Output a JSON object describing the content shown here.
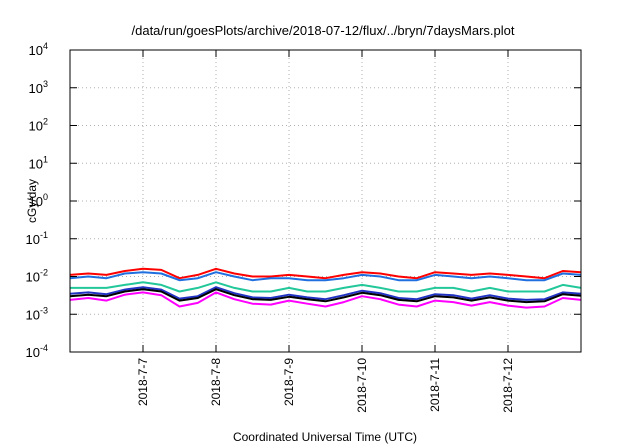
{
  "chart_data": {
    "type": "line",
    "title": "/data/run/goesPlots/archive/2018-07-12/flux/../bryn/7daysMars.plot",
    "xlabel": "Coordinated Universal Time (UTC)",
    "ylabel": "cGy/day",
    "y_scale": "log",
    "ylim": [
      0.0001,
      10000
    ],
    "y_ticks": [
      {
        "base": "10",
        "exp": "-4",
        "value": 0.0001
      },
      {
        "base": "10",
        "exp": "-3",
        "value": 0.001
      },
      {
        "base": "10",
        "exp": "-2",
        "value": 0.01
      },
      {
        "base": "10",
        "exp": "-1",
        "value": 0.1
      },
      {
        "base": "10",
        "exp": "0",
        "value": 1
      },
      {
        "base": "10",
        "exp": "1",
        "value": 10
      },
      {
        "base": "10",
        "exp": "2",
        "value": 100
      },
      {
        "base": "10",
        "exp": "3",
        "value": 1000
      },
      {
        "base": "10",
        "exp": "4",
        "value": 10000
      }
    ],
    "xlim": [
      "2018-07-06 00:00",
      "2018-07-13 00:00"
    ],
    "x_ticks": [
      "2018-7-7",
      "2018-7-8",
      "2018-7-9",
      "2018-7-10",
      "2018-7-11",
      "2018-7-12"
    ],
    "grid": true,
    "legend": "none",
    "x": [
      "2018-07-06 00:00",
      "2018-07-06 06:00",
      "2018-07-06 12:00",
      "2018-07-06 18:00",
      "2018-07-07 00:00",
      "2018-07-07 06:00",
      "2018-07-07 12:00",
      "2018-07-07 18:00",
      "2018-07-08 00:00",
      "2018-07-08 06:00",
      "2018-07-08 12:00",
      "2018-07-08 18:00",
      "2018-07-09 00:00",
      "2018-07-09 06:00",
      "2018-07-09 12:00",
      "2018-07-09 18:00",
      "2018-07-10 00:00",
      "2018-07-10 06:00",
      "2018-07-10 12:00",
      "2018-07-10 18:00",
      "2018-07-11 00:00",
      "2018-07-11 06:00",
      "2018-07-11 12:00",
      "2018-07-11 18:00",
      "2018-07-12 00:00",
      "2018-07-12 06:00",
      "2018-07-12 12:00",
      "2018-07-12 18:00",
      "2018-07-13 00:00"
    ],
    "series": [
      {
        "color": "#ff0000",
        "values": [
          0.011,
          0.012,
          0.011,
          0.014,
          0.016,
          0.015,
          0.009,
          0.011,
          0.016,
          0.012,
          0.01,
          0.01,
          0.011,
          0.01,
          0.009,
          0.011,
          0.013,
          0.012,
          0.01,
          0.009,
          0.013,
          0.012,
          0.011,
          0.012,
          0.011,
          0.01,
          0.009,
          0.014,
          0.013
        ]
      },
      {
        "color": "#1f6fe0",
        "values": [
          0.009,
          0.01,
          0.009,
          0.012,
          0.013,
          0.012,
          0.008,
          0.009,
          0.013,
          0.01,
          0.008,
          0.009,
          0.009,
          0.008,
          0.008,
          0.009,
          0.011,
          0.01,
          0.008,
          0.008,
          0.011,
          0.01,
          0.009,
          0.01,
          0.009,
          0.008,
          0.008,
          0.012,
          0.011
        ]
      },
      {
        "color": "#22c79a",
        "values": [
          0.005,
          0.005,
          0.005,
          0.006,
          0.007,
          0.006,
          0.004,
          0.005,
          0.007,
          0.005,
          0.004,
          0.004,
          0.005,
          0.004,
          0.004,
          0.005,
          0.006,
          0.005,
          0.004,
          0.004,
          0.005,
          0.005,
          0.004,
          0.005,
          0.004,
          0.004,
          0.004,
          0.006,
          0.005
        ]
      },
      {
        "color": "#2233c4",
        "values": [
          0.0035,
          0.0038,
          0.0034,
          0.0045,
          0.0052,
          0.0045,
          0.0026,
          0.003,
          0.0052,
          0.0036,
          0.0028,
          0.0027,
          0.0033,
          0.0028,
          0.0025,
          0.0032,
          0.0042,
          0.0036,
          0.0027,
          0.0025,
          0.0034,
          0.0032,
          0.0026,
          0.0032,
          0.0026,
          0.0024,
          0.0025,
          0.0038,
          0.0035
        ]
      },
      {
        "color": "#000000",
        "values": [
          0.003,
          0.0033,
          0.003,
          0.004,
          0.0046,
          0.004,
          0.0023,
          0.0027,
          0.0046,
          0.0032,
          0.0025,
          0.0024,
          0.0029,
          0.0025,
          0.0022,
          0.0028,
          0.0037,
          0.0032,
          0.0024,
          0.0022,
          0.003,
          0.0028,
          0.0023,
          0.0028,
          0.0023,
          0.0021,
          0.0022,
          0.0034,
          0.0031
        ]
      },
      {
        "color": "#ff00ff",
        "values": [
          0.0024,
          0.0027,
          0.0023,
          0.0033,
          0.0038,
          0.0032,
          0.0016,
          0.002,
          0.0038,
          0.0025,
          0.0019,
          0.0018,
          0.0023,
          0.0019,
          0.0016,
          0.0021,
          0.003,
          0.0025,
          0.0018,
          0.0016,
          0.0023,
          0.0021,
          0.0017,
          0.0021,
          0.0017,
          0.0015,
          0.0016,
          0.0027,
          0.0024
        ]
      }
    ]
  }
}
